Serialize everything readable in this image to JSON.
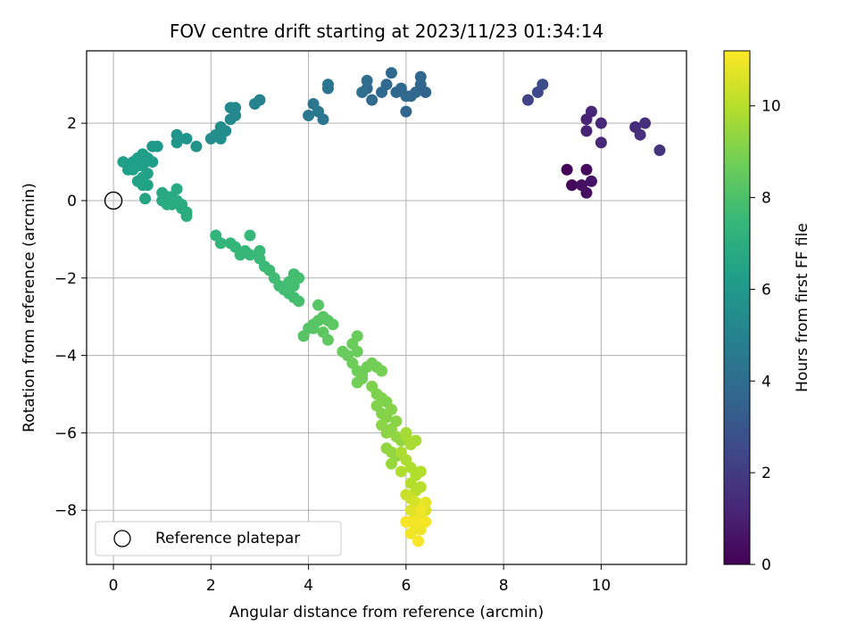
{
  "chart_data": {
    "type": "scatter",
    "title": "FOV centre drift starting at 2023/11/23 01:34:14",
    "xlabel": "Angular distance from reference (arcmin)",
    "ylabel": "Rotation from reference (arcmin)",
    "xlim": [
      -0.55,
      11.75
    ],
    "ylim": [
      -9.4,
      3.87
    ],
    "xticks": [
      0,
      2,
      4,
      6,
      8,
      10
    ],
    "yticks": [
      -8,
      -6,
      -4,
      -2,
      0,
      2
    ],
    "grid": true,
    "colormap": "viridis",
    "colorbar": {
      "label": "Hours from first FF file",
      "range": [
        0,
        11.2
      ],
      "ticks": [
        0,
        2,
        4,
        6,
        8,
        10
      ]
    },
    "legend": {
      "position": "lower-left",
      "entries": [
        "Reference platepar"
      ]
    },
    "reference_point": {
      "x": 0,
      "y": 0,
      "label": "Reference platepar"
    },
    "points": [
      {
        "x": 9.3,
        "y": 0.8,
        "t": 0.1
      },
      {
        "x": 9.4,
        "y": 0.4,
        "t": 0.2
      },
      {
        "x": 9.7,
        "y": 0.8,
        "t": 0.3
      },
      {
        "x": 9.7,
        "y": 0.2,
        "t": 0.4
      },
      {
        "x": 9.6,
        "y": 0.4,
        "t": 0.5
      },
      {
        "x": 9.8,
        "y": 0.5,
        "t": 0.6
      },
      {
        "x": 9.7,
        "y": 1.8,
        "t": 1.1
      },
      {
        "x": 9.7,
        "y": 2.1,
        "t": 1.15
      },
      {
        "x": 9.8,
        "y": 2.3,
        "t": 1.2
      },
      {
        "x": 10.0,
        "y": 2.0,
        "t": 1.25
      },
      {
        "x": 10.0,
        "y": 1.5,
        "t": 1.3
      },
      {
        "x": 10.7,
        "y": 1.9,
        "t": 1.4
      },
      {
        "x": 10.9,
        "y": 2.0,
        "t": 1.5
      },
      {
        "x": 10.8,
        "y": 1.7,
        "t": 1.6
      },
      {
        "x": 11.2,
        "y": 1.3,
        "t": 1.7
      },
      {
        "x": 8.5,
        "y": 2.6,
        "t": 2.3
      },
      {
        "x": 8.7,
        "y": 2.8,
        "t": 2.5
      },
      {
        "x": 8.8,
        "y": 3.0,
        "t": 2.7
      },
      {
        "x": 5.2,
        "y": 2.9,
        "t": 3.9
      },
      {
        "x": 5.3,
        "y": 2.6,
        "t": 3.9
      },
      {
        "x": 5.5,
        "y": 2.8,
        "t": 3.85
      },
      {
        "x": 5.6,
        "y": 3.0,
        "t": 3.85
      },
      {
        "x": 5.8,
        "y": 2.8,
        "t": 3.8
      },
      {
        "x": 5.7,
        "y": 3.3,
        "t": 3.8
      },
      {
        "x": 6.0,
        "y": 2.7,
        "t": 3.75
      },
      {
        "x": 6.1,
        "y": 2.7,
        "t": 3.75
      },
      {
        "x": 6.0,
        "y": 2.3,
        "t": 3.7
      },
      {
        "x": 6.2,
        "y": 2.8,
        "t": 3.7
      },
      {
        "x": 6.3,
        "y": 3.2,
        "t": 3.65
      },
      {
        "x": 6.3,
        "y": 3.0,
        "t": 3.65
      },
      {
        "x": 6.4,
        "y": 2.8,
        "t": 3.6
      },
      {
        "x": 5.2,
        "y": 3.1,
        "t": 3.95
      },
      {
        "x": 5.9,
        "y": 2.9,
        "t": 3.8
      },
      {
        "x": 4.0,
        "y": 2.2,
        "t": 4.5
      },
      {
        "x": 4.1,
        "y": 2.5,
        "t": 4.45
      },
      {
        "x": 4.3,
        "y": 2.1,
        "t": 4.4
      },
      {
        "x": 4.2,
        "y": 2.3,
        "t": 4.45
      },
      {
        "x": 4.4,
        "y": 2.9,
        "t": 4.4
      },
      {
        "x": 4.4,
        "y": 3.0,
        "t": 4.35
      },
      {
        "x": 5.1,
        "y": 2.8,
        "t": 4.05
      },
      {
        "x": 2.9,
        "y": 2.5,
        "t": 5.0
      },
      {
        "x": 3.0,
        "y": 2.6,
        "t": 5.0
      },
      {
        "x": 2.4,
        "y": 2.1,
        "t": 5.25
      },
      {
        "x": 2.4,
        "y": 2.4,
        "t": 5.25
      },
      {
        "x": 2.5,
        "y": 2.2,
        "t": 5.3
      },
      {
        "x": 2.5,
        "y": 2.4,
        "t": 5.3
      },
      {
        "x": 2.3,
        "y": 1.8,
        "t": 5.4
      },
      {
        "x": 2.2,
        "y": 1.9,
        "t": 5.45
      },
      {
        "x": 2.1,
        "y": 1.7,
        "t": 5.5
      },
      {
        "x": 2.0,
        "y": 1.6,
        "t": 5.5
      },
      {
        "x": 2.2,
        "y": 1.6,
        "t": 5.55
      },
      {
        "x": 1.3,
        "y": 1.7,
        "t": 5.8
      },
      {
        "x": 1.5,
        "y": 1.6,
        "t": 5.8
      },
      {
        "x": 1.3,
        "y": 1.5,
        "t": 5.85
      },
      {
        "x": 1.7,
        "y": 1.4,
        "t": 5.75
      },
      {
        "x": 0.8,
        "y": 1.4,
        "t": 6.0
      },
      {
        "x": 0.9,
        "y": 1.4,
        "t": 6.0
      },
      {
        "x": 0.2,
        "y": 1.0,
        "t": 6.3
      },
      {
        "x": 0.3,
        "y": 0.8,
        "t": 6.3
      },
      {
        "x": 0.4,
        "y": 1.0,
        "t": 6.25
      },
      {
        "x": 0.5,
        "y": 1.1,
        "t": 6.25
      },
      {
        "x": 0.6,
        "y": 1.2,
        "t": 6.2
      },
      {
        "x": 0.7,
        "y": 1.1,
        "t": 6.2
      },
      {
        "x": 0.8,
        "y": 1.0,
        "t": 6.2
      },
      {
        "x": 0.5,
        "y": 0.9,
        "t": 6.3
      },
      {
        "x": 0.6,
        "y": 0.9,
        "t": 6.3
      },
      {
        "x": 0.4,
        "y": 0.8,
        "t": 6.35
      },
      {
        "x": 0.7,
        "y": 0.7,
        "t": 6.35
      },
      {
        "x": 0.6,
        "y": 0.6,
        "t": 6.4
      },
      {
        "x": 0.5,
        "y": 0.5,
        "t": 6.4
      },
      {
        "x": 0.6,
        "y": 0.4,
        "t": 6.45
      },
      {
        "x": 0.7,
        "y": 0.4,
        "t": 6.45
      },
      {
        "x": 0.65,
        "y": 0.05,
        "t": 6.5
      },
      {
        "x": 1.0,
        "y": 0.2,
        "t": 6.7
      },
      {
        "x": 1.0,
        "y": 0.0,
        "t": 6.75
      },
      {
        "x": 1.1,
        "y": 0.1,
        "t": 6.75
      },
      {
        "x": 1.2,
        "y": 0.1,
        "t": 6.8
      },
      {
        "x": 1.3,
        "y": 0.3,
        "t": 6.8
      },
      {
        "x": 1.3,
        "y": 0.0,
        "t": 6.85
      },
      {
        "x": 1.1,
        "y": -0.1,
        "t": 6.85
      },
      {
        "x": 1.4,
        "y": -0.1,
        "t": 6.9
      },
      {
        "x": 1.4,
        "y": -0.2,
        "t": 6.9
      },
      {
        "x": 1.5,
        "y": -0.3,
        "t": 6.95
      },
      {
        "x": 1.5,
        "y": -0.4,
        "t": 6.95
      },
      {
        "x": 1.2,
        "y": -0.1,
        "t": 6.9
      },
      {
        "x": 2.1,
        "y": -0.9,
        "t": 7.3
      },
      {
        "x": 2.2,
        "y": -1.1,
        "t": 7.35
      },
      {
        "x": 2.4,
        "y": -1.1,
        "t": 7.4
      },
      {
        "x": 2.5,
        "y": -1.2,
        "t": 7.4
      },
      {
        "x": 2.6,
        "y": -1.4,
        "t": 7.45
      },
      {
        "x": 2.7,
        "y": -1.3,
        "t": 7.45
      },
      {
        "x": 2.8,
        "y": -1.4,
        "t": 7.5
      },
      {
        "x": 2.8,
        "y": -0.9,
        "t": 7.5
      },
      {
        "x": 3.0,
        "y": -1.3,
        "t": 7.55
      },
      {
        "x": 3.0,
        "y": -1.5,
        "t": 7.6
      },
      {
        "x": 3.1,
        "y": -1.7,
        "t": 7.6
      },
      {
        "x": 3.2,
        "y": -1.8,
        "t": 7.65
      },
      {
        "x": 3.3,
        "y": -2.0,
        "t": 7.7
      },
      {
        "x": 3.4,
        "y": -2.2,
        "t": 7.75
      },
      {
        "x": 3.5,
        "y": -2.3,
        "t": 7.75
      },
      {
        "x": 3.6,
        "y": -2.4,
        "t": 7.8
      },
      {
        "x": 3.7,
        "y": -2.5,
        "t": 7.8
      },
      {
        "x": 3.8,
        "y": -2.6,
        "t": 7.85
      },
      {
        "x": 3.6,
        "y": -2.1,
        "t": 7.8
      },
      {
        "x": 3.7,
        "y": -1.9,
        "t": 7.8
      },
      {
        "x": 3.8,
        "y": -2.0,
        "t": 7.85
      },
      {
        "x": 3.7,
        "y": -2.2,
        "t": 7.8
      },
      {
        "x": 3.9,
        "y": -3.5,
        "t": 8.2
      },
      {
        "x": 4.0,
        "y": -3.3,
        "t": 8.2
      },
      {
        "x": 4.1,
        "y": -3.2,
        "t": 8.25
      },
      {
        "x": 4.2,
        "y": -3.1,
        "t": 8.25
      },
      {
        "x": 4.3,
        "y": -3.0,
        "t": 8.3
      },
      {
        "x": 4.4,
        "y": -3.1,
        "t": 8.3
      },
      {
        "x": 4.5,
        "y": -3.2,
        "t": 8.35
      },
      {
        "x": 4.3,
        "y": -3.4,
        "t": 8.35
      },
      {
        "x": 4.4,
        "y": -3.6,
        "t": 8.4
      },
      {
        "x": 4.2,
        "y": -2.7,
        "t": 8.25
      },
      {
        "x": 4.1,
        "y": -3.3,
        "t": 8.25
      },
      {
        "x": 4.7,
        "y": -3.9,
        "t": 8.6
      },
      {
        "x": 4.8,
        "y": -4.0,
        "t": 8.6
      },
      {
        "x": 4.9,
        "y": -3.7,
        "t": 8.65
      },
      {
        "x": 5.0,
        "y": -3.9,
        "t": 8.65
      },
      {
        "x": 4.9,
        "y": -4.2,
        "t": 8.7
      },
      {
        "x": 5.0,
        "y": -4.4,
        "t": 8.7
      },
      {
        "x": 5.1,
        "y": -4.5,
        "t": 8.75
      },
      {
        "x": 5.2,
        "y": -4.3,
        "t": 8.75
      },
      {
        "x": 5.3,
        "y": -4.2,
        "t": 8.8
      },
      {
        "x": 5.4,
        "y": -4.3,
        "t": 8.8
      },
      {
        "x": 5.5,
        "y": -4.4,
        "t": 8.85
      },
      {
        "x": 5.0,
        "y": -4.7,
        "t": 8.8
      },
      {
        "x": 5.1,
        "y": -4.6,
        "t": 8.8
      },
      {
        "x": 5.0,
        "y": -3.5,
        "t": 8.6
      },
      {
        "x": 5.3,
        "y": -4.8,
        "t": 9.0
      },
      {
        "x": 5.4,
        "y": -5.0,
        "t": 9.0
      },
      {
        "x": 5.5,
        "y": -5.1,
        "t": 9.05
      },
      {
        "x": 5.6,
        "y": -5.2,
        "t": 9.05
      },
      {
        "x": 5.4,
        "y": -5.3,
        "t": 9.1
      },
      {
        "x": 5.5,
        "y": -5.5,
        "t": 9.1
      },
      {
        "x": 5.6,
        "y": -5.6,
        "t": 9.15
      },
      {
        "x": 5.7,
        "y": -5.4,
        "t": 9.15
      },
      {
        "x": 5.8,
        "y": -5.7,
        "t": 9.2
      },
      {
        "x": 5.5,
        "y": -5.8,
        "t": 9.2
      },
      {
        "x": 5.6,
        "y": -6.0,
        "t": 9.25
      },
      {
        "x": 5.7,
        "y": -5.9,
        "t": 9.25
      },
      {
        "x": 5.8,
        "y": -6.1,
        "t": 9.3
      },
      {
        "x": 5.6,
        "y": -6.4,
        "t": 9.35
      },
      {
        "x": 5.7,
        "y": -6.5,
        "t": 9.4
      },
      {
        "x": 5.8,
        "y": -6.6,
        "t": 9.4
      },
      {
        "x": 5.7,
        "y": -6.8,
        "t": 9.45
      },
      {
        "x": 5.9,
        "y": -6.2,
        "t": 9.35
      },
      {
        "x": 6.0,
        "y": -6.1,
        "t": 9.7
      },
      {
        "x": 6.1,
        "y": -6.3,
        "t": 9.75
      },
      {
        "x": 6.2,
        "y": -6.2,
        "t": 9.75
      },
      {
        "x": 5.9,
        "y": -6.5,
        "t": 9.8
      },
      {
        "x": 6.0,
        "y": -6.7,
        "t": 9.8
      },
      {
        "x": 6.1,
        "y": -6.9,
        "t": 9.85
      },
      {
        "x": 6.2,
        "y": -7.1,
        "t": 9.9
      },
      {
        "x": 6.1,
        "y": -7.3,
        "t": 9.95
      },
      {
        "x": 6.3,
        "y": -7.0,
        "t": 9.95
      },
      {
        "x": 5.9,
        "y": -7.0,
        "t": 9.9
      },
      {
        "x": 6.2,
        "y": -7.5,
        "t": 10.0
      },
      {
        "x": 6.3,
        "y": -7.4,
        "t": 10.0
      },
      {
        "x": 6.0,
        "y": -6.0,
        "t": 9.7
      },
      {
        "x": 6.0,
        "y": -7.6,
        "t": 10.3
      },
      {
        "x": 6.1,
        "y": -7.7,
        "t": 10.4
      },
      {
        "x": 6.2,
        "y": -7.8,
        "t": 10.5
      },
      {
        "x": 6.3,
        "y": -7.9,
        "t": 10.55
      },
      {
        "x": 6.4,
        "y": -8.0,
        "t": 10.6
      },
      {
        "x": 6.1,
        "y": -8.0,
        "t": 10.65
      },
      {
        "x": 6.2,
        "y": -8.1,
        "t": 10.7
      },
      {
        "x": 6.3,
        "y": -8.2,
        "t": 10.75
      },
      {
        "x": 6.4,
        "y": -7.8,
        "t": 10.8
      },
      {
        "x": 6.1,
        "y": -8.3,
        "t": 10.85
      },
      {
        "x": 6.2,
        "y": -8.4,
        "t": 10.9
      },
      {
        "x": 6.3,
        "y": -8.5,
        "t": 10.95
      },
      {
        "x": 6.1,
        "y": -8.6,
        "t": 11.0
      },
      {
        "x": 6.2,
        "y": -8.3,
        "t": 11.05
      },
      {
        "x": 6.25,
        "y": -8.8,
        "t": 11.1
      },
      {
        "x": 6.0,
        "y": -8.3,
        "t": 11.05
      },
      {
        "x": 6.3,
        "y": -8.0,
        "t": 11.0
      },
      {
        "x": 6.4,
        "y": -8.3,
        "t": 11.1
      }
    ]
  }
}
